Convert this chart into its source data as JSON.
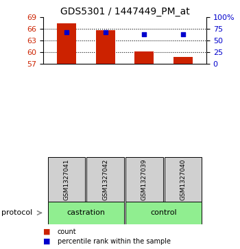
{
  "title": "GDS5301 / 1447449_PM_at",
  "samples": [
    "GSM1327041",
    "GSM1327042",
    "GSM1327039",
    "GSM1327040"
  ],
  "bar_values": [
    67.55,
    65.72,
    60.22,
    58.72
  ],
  "percentile_values": [
    65.25,
    65.15,
    64.72,
    64.62
  ],
  "bar_color": "#cc2200",
  "percentile_color": "#0000cc",
  "left_ylim": [
    57,
    69
  ],
  "right_ylim": [
    0,
    100
  ],
  "left_yticks": [
    57,
    60,
    63,
    66,
    69
  ],
  "right_yticks": [
    0,
    25,
    50,
    75,
    100
  ],
  "right_yticklabels": [
    "0",
    "25",
    "50",
    "75",
    "100%"
  ],
  "groups": [
    {
      "label": "castration",
      "indices": [
        0,
        1
      ]
    },
    {
      "label": "control",
      "indices": [
        2,
        3
      ]
    }
  ],
  "protocol_label": "protocol",
  "legend_count_label": "count",
  "legend_percentile_label": "percentile rank within the sample",
  "group_bg_color": "#90EE90",
  "sample_bg_color": "#d0d0d0",
  "background_color": "#ffffff",
  "title_fontsize": 10,
  "tick_fontsize": 8,
  "sample_fontsize": 6.5,
  "group_fontsize": 8,
  "bar_width": 0.5
}
